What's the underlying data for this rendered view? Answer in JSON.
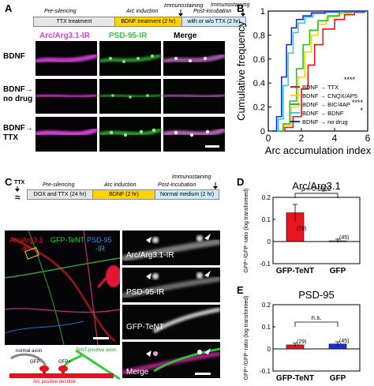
{
  "panelA": {
    "label": "A",
    "timeline": {
      "silencing_phase": "Pre-silencing",
      "silencing_bar": "TTX treatment",
      "induction_phase": "Arc induction",
      "induction_bar": "BDNF treatment (2 hr)",
      "postinc_phase": "Post-incubation",
      "postinc_bar": "with or w/o TTX (2 hr)",
      "immuno1": "Immunostaining",
      "immuno2": "Immunostaining",
      "colors": {
        "silencing": "#e6e6e6",
        "induction": "#ffd400",
        "postinc": "#cfeaf8"
      }
    },
    "col_headers": [
      "Arc/Arg3.1-IR",
      "PSD-95-IR",
      "Merge"
    ],
    "col_colors": [
      "#e838e8",
      "#3cc83c",
      "#000000"
    ],
    "row_labels": [
      [
        "BDNF"
      ],
      [
        "BDNF→",
        "no drug"
      ],
      [
        "BDNF→",
        "TTX"
      ]
    ]
  },
  "panelB": {
    "label": "B",
    "chart_data": {
      "type": "line",
      "title": "",
      "xlabel": "Arc accumulation index",
      "ylabel": "Cumulative frequency",
      "xlim": [
        0,
        6
      ],
      "ylim": [
        0,
        1
      ],
      "xticks": [
        "0",
        "2",
        "4",
        "6"
      ],
      "yticks": [
        "0",
        "0.2",
        "0.4",
        "0.6",
        "0.8",
        "1"
      ],
      "series": [
        {
          "name": "BDNF → TTX",
          "color": "#e8141e",
          "x": [
            0.3,
            1.0,
            1.5,
            2.0,
            2.4,
            2.8,
            3.3,
            4.0,
            4.6,
            5.2,
            5.8
          ],
          "y": [
            0,
            0.03,
            0.12,
            0.35,
            0.55,
            0.72,
            0.85,
            0.93,
            0.97,
            0.99,
            1
          ]
        },
        {
          "name": "BDNF → CNQX/AP5",
          "color": "#ffd400",
          "x": [
            0.3,
            0.9,
            1.4,
            1.8,
            2.2,
            2.6,
            3.0,
            3.5,
            4.2,
            5.0
          ],
          "y": [
            0,
            0.05,
            0.2,
            0.45,
            0.66,
            0.8,
            0.89,
            0.95,
            0.98,
            1
          ]
        },
        {
          "name": "BDNF → BIC/4AP",
          "color": "#2bbf2b",
          "x": [
            0.3,
            0.9,
            1.3,
            1.7,
            2.1,
            2.5,
            3.0,
            3.6,
            4.3,
            5.2
          ],
          "y": [
            0,
            0.06,
            0.25,
            0.52,
            0.72,
            0.84,
            0.92,
            0.96,
            0.99,
            1
          ]
        },
        {
          "name": "BDNF → BDNF",
          "color": "#2fd0f0",
          "x": [
            0.2,
            0.6,
            0.9,
            1.2,
            1.5,
            1.8,
            2.2,
            2.7,
            3.5,
            4.5
          ],
          "y": [
            0,
            0.1,
            0.38,
            0.65,
            0.82,
            0.9,
            0.95,
            0.98,
            0.99,
            1
          ]
        },
        {
          "name": "BDNF → no drug",
          "color": "#1a2fd6",
          "x": [
            0.2,
            0.5,
            0.8,
            1.1,
            1.4,
            1.7,
            2.1,
            2.6,
            3.4,
            4.3
          ],
          "y": [
            0,
            0.12,
            0.45,
            0.72,
            0.86,
            0.93,
            0.96,
            0.985,
            0.995,
            1
          ]
        }
      ],
      "legend_position": "bottom-right",
      "significance": [
        "****",
        "****",
        "*"
      ]
    }
  },
  "panelC": {
    "label": "C",
    "timeline": {
      "ttx_label": "TTX",
      "break_symbol": "≈",
      "silencing_phase": "Pre-silencing",
      "silencing_bar": "DOX and TTX (24 hr)",
      "induction_phase": "Arc induction",
      "induction_bar": "BDNF (2 hr)",
      "postinc_phase": "Post-incubation",
      "postinc_bar": "Normal medium (2 hr)",
      "immuno": "Immunostaining",
      "colors": {
        "silencing": "#e6e6e6",
        "induction": "#ffd400",
        "postinc": "#cfeaf8"
      }
    },
    "main_labels": {
      "arc": "Arc/Arg3.1",
      "ir1": "-IR",
      "gfp": "GFP-TeNT",
      "psd": "PSD-95",
      "ir2": "-IR"
    },
    "zoom_labels": [
      "Arc/Arg3.1-IR",
      "PSD-95-IR",
      "GFP-TeNT",
      "Merge"
    ],
    "schematic": {
      "normal_axon": "normal axon",
      "tent_axon": "TeNT-positive axon",
      "gfp_minus": "GFP-",
      "gfp_plus": "GFP+",
      "dendrite": "Arc positive dendrite"
    }
  },
  "panelD": {
    "label": "D",
    "chart_data": {
      "type": "bar",
      "title": "Arc/Arg3.1",
      "ylabel": "GFP⁺/GFP⁻ratio (log transformed)",
      "categories": [
        "GFP-TeNT",
        "GFP"
      ],
      "values": [
        0.13,
        0.003
      ],
      "errors": [
        0.038,
        0.008
      ],
      "n_labels": [
        "(29)",
        "(45)"
      ],
      "colors": [
        "#e8141e",
        "#1a2fd6"
      ],
      "ylim": [
        -0.1,
        0.2
      ],
      "yticks": [
        "-0.1",
        "0",
        "0.1",
        "0.2"
      ],
      "pvalue": "p = 0.0002"
    }
  },
  "panelE": {
    "label": "E",
    "chart_data": {
      "type": "bar",
      "title": "PSD-95",
      "ylabel": "GFP⁺/GFP⁻ratio (log transformed)",
      "categories": [
        "GFP-TeNT",
        "GFP"
      ],
      "values": [
        0.018,
        0.022
      ],
      "errors": [
        0.008,
        0.01
      ],
      "n_labels": [
        "(29)",
        "(45)"
      ],
      "colors": [
        "#e8141e",
        "#1a2fd6"
      ],
      "ylim": [
        -0.1,
        0.2
      ],
      "yticks": [
        "-0.1",
        "0",
        "0.1",
        "0.2"
      ],
      "pvalue": "n.s."
    }
  }
}
